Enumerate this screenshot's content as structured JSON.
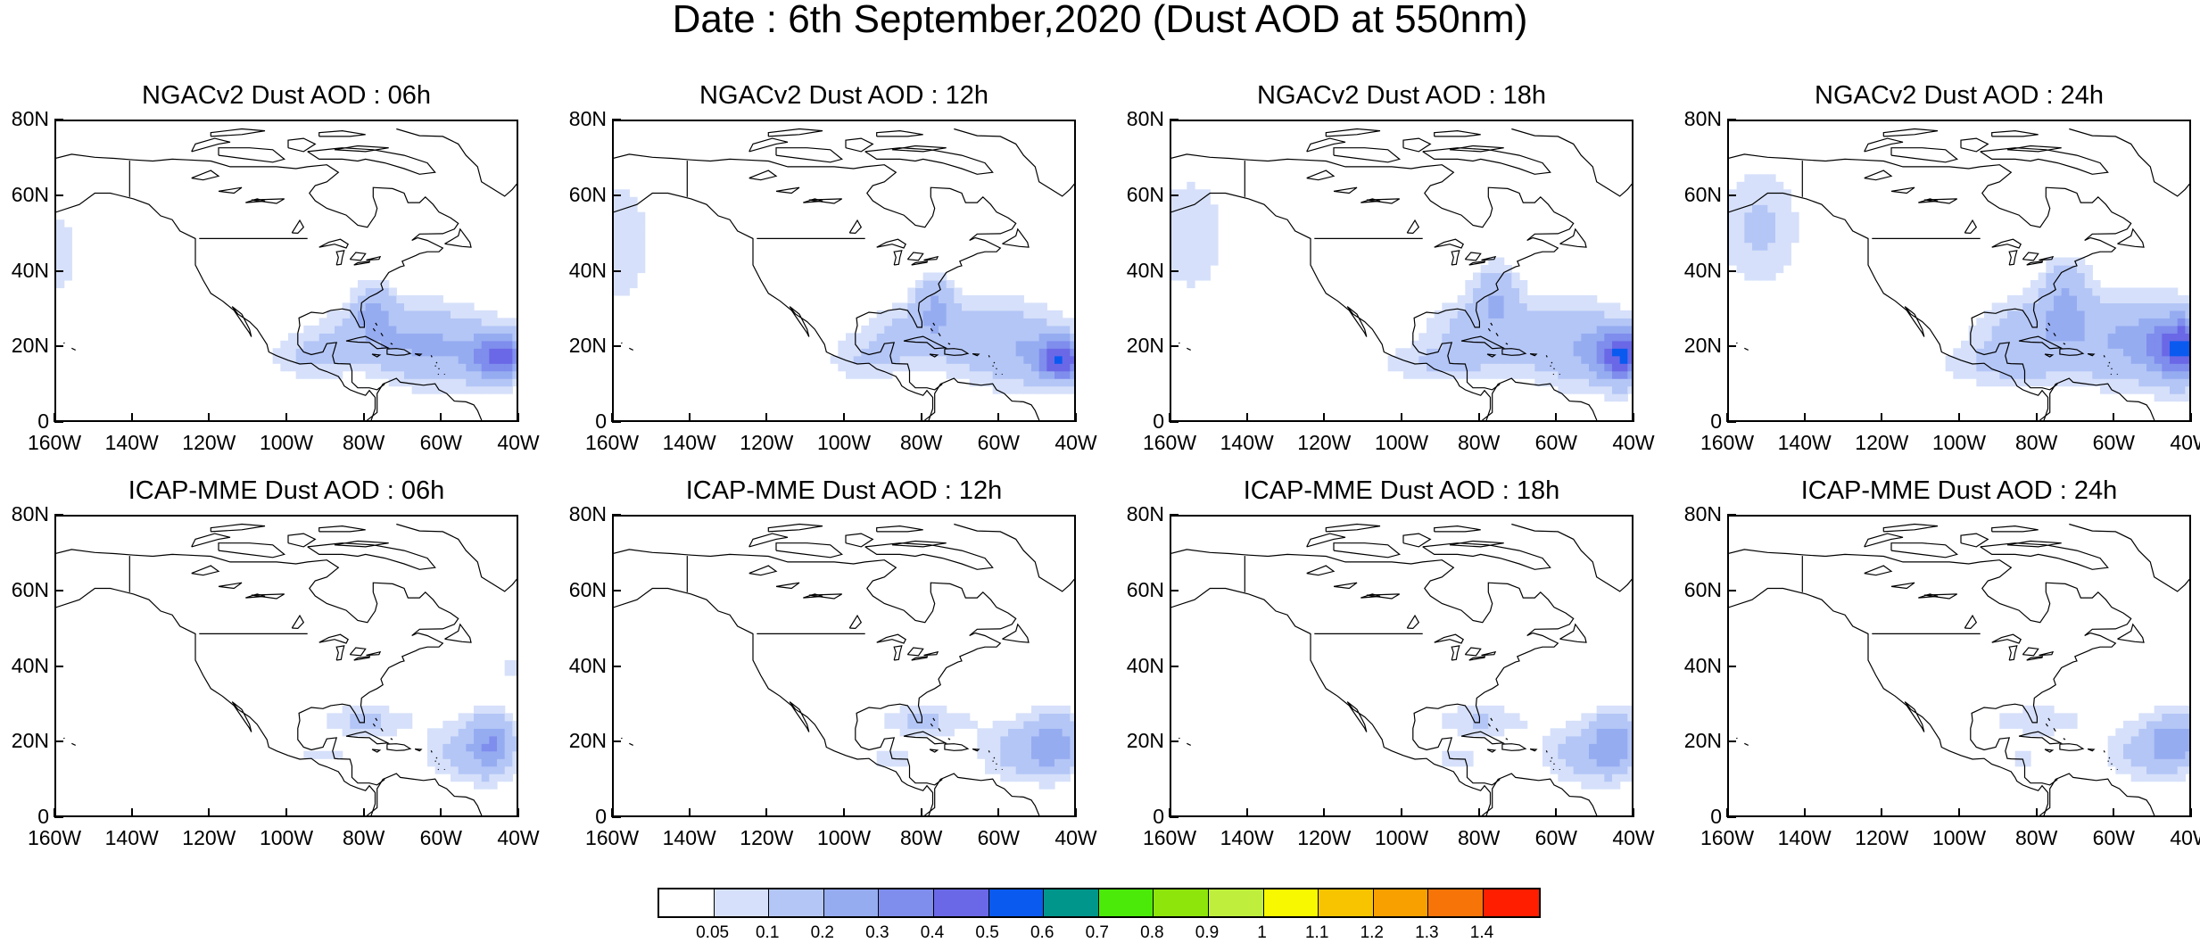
{
  "title": "Date : 6th September,2020 (Dust AOD at 550nm)",
  "lat_labels": [
    "80N",
    "60N",
    "40N",
    "20N",
    "0"
  ],
  "lon_labels": [
    "160W",
    "140W",
    "120W",
    "100W",
    "80W",
    "60W",
    "40W"
  ],
  "panels": [
    {
      "title": "NGACv2 Dust AOD : 06h",
      "row": 0,
      "col": 0,
      "model": "ngac"
    },
    {
      "title": "NGACv2 Dust AOD : 12h",
      "row": 0,
      "col": 1,
      "model": "ngac"
    },
    {
      "title": "NGACv2 Dust AOD : 18h",
      "row": 0,
      "col": 2,
      "model": "ngac"
    },
    {
      "title": "NGACv2 Dust AOD : 24h",
      "row": 0,
      "col": 3,
      "model": "ngac"
    },
    {
      "title": "ICAP-MME Dust AOD : 06h",
      "row": 1,
      "col": 0,
      "model": "icap"
    },
    {
      "title": "ICAP-MME Dust AOD : 12h",
      "row": 1,
      "col": 1,
      "model": "icap"
    },
    {
      "title": "ICAP-MME Dust AOD : 18h",
      "row": 1,
      "col": 2,
      "model": "icap"
    },
    {
      "title": "ICAP-MME Dust AOD : 24h",
      "row": 1,
      "col": 3,
      "model": "icap"
    }
  ],
  "colorbar": {
    "labels": [
      "0.05",
      "0.1",
      "0.2",
      "0.3",
      "0.4",
      "0.5",
      "0.6",
      "0.7",
      "0.8",
      "0.9",
      "1",
      "1.1",
      "1.2",
      "1.3",
      "1.4"
    ],
    "colors": [
      "#ffffff",
      "#d6e0fa",
      "#b4c6f6",
      "#96acf1",
      "#7f8ded",
      "#6a68e6",
      "#0a5af0",
      "#00968c",
      "#4bea09",
      "#8ee50b",
      "#bfef3c",
      "#f8f800",
      "#f8c400",
      "#f8a000",
      "#f67408",
      "#ff1e00"
    ]
  }
}
